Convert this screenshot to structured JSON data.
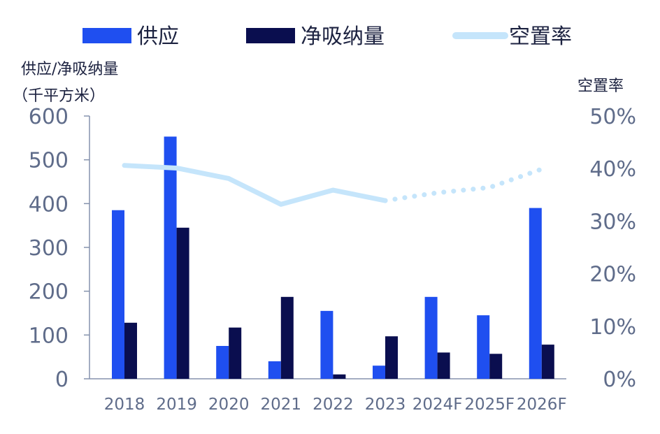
{
  "colors": {
    "supply": "#1f4ff0",
    "absorption": "#0a0e4f",
    "vacancy": "#c5e5fb",
    "axis": "#8592ad",
    "tick_text": "#5f6c8a",
    "title_text": "#1c2240"
  },
  "legend": [
    {
      "label": "供应",
      "series": "supply"
    },
    {
      "label": "净吸纳量",
      "series": "absorption"
    },
    {
      "label": "空置率",
      "series": "vacancy"
    }
  ],
  "chart_data": {
    "type": "bar",
    "categories": [
      "2018",
      "2019",
      "2020",
      "2021",
      "2022",
      "2023",
      "2024F",
      "2025F",
      "2026F"
    ],
    "series": [
      {
        "name": "供应",
        "type": "bar",
        "axis": "left",
        "values": [
          385,
          553,
          75,
          40,
          155,
          30,
          187,
          145,
          390
        ]
      },
      {
        "name": "净吸纳量",
        "type": "bar",
        "axis": "left",
        "values": [
          128,
          345,
          117,
          187,
          10,
          97,
          60,
          57,
          78
        ]
      },
      {
        "name": "空置率",
        "type": "line",
        "axis": "right",
        "values": [
          40.6,
          40.1,
          38.1,
          33.2,
          35.9,
          33.9,
          35.4,
          36.4,
          39.9
        ],
        "forecast_from_index": 5
      }
    ],
    "left_axis": {
      "title_line1": "供应/净吸纳量",
      "title_line2": "（千平方米）",
      "ylim": [
        0,
        600
      ],
      "ticks": [
        "0",
        "100",
        "200",
        "300",
        "400",
        "500",
        "600"
      ]
    },
    "right_axis": {
      "title": "空置率",
      "ylim": [
        0,
        50
      ],
      "ticks": [
        "0%",
        "10%",
        "20%",
        "30%",
        "40%",
        "50%"
      ]
    },
    "grid": false,
    "legend_position": "top"
  }
}
